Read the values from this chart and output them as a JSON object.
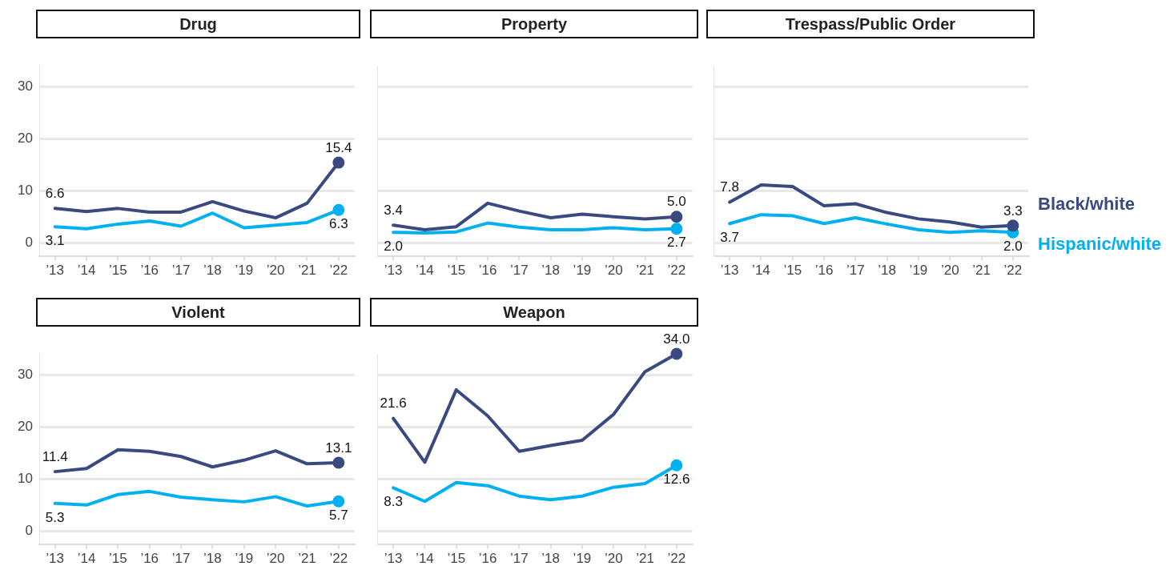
{
  "chart_data": [
    {
      "type": "line",
      "title": "Drug",
      "categories": [
        "’13",
        "’14",
        "’15",
        "’16",
        "’17",
        "’18",
        "’19",
        "’20",
        "’21",
        "’22"
      ],
      "ylim": [
        -2.5,
        34
      ],
      "yticks": [
        0,
        10,
        20,
        30
      ],
      "grid": "y",
      "series": [
        {
          "color": "#3a4a80",
          "values": [
            6.6,
            6.0,
            6.6,
            5.9,
            5.9,
            7.9,
            6.1,
            4.8,
            7.6,
            15.4
          ],
          "value_labels": [
            "6.6",
            null,
            null,
            null,
            null,
            null,
            null,
            null,
            null,
            "15.4"
          ]
        },
        {
          "color": "#00b0f0",
          "values": [
            3.1,
            2.7,
            3.6,
            4.2,
            3.2,
            5.7,
            2.9,
            3.4,
            3.9,
            6.3
          ],
          "value_labels": [
            "3.1",
            null,
            null,
            null,
            null,
            null,
            null,
            null,
            null,
            "6.3"
          ]
        }
      ]
    },
    {
      "type": "line",
      "title": "Property",
      "categories": [
        "’13",
        "’14",
        "’15",
        "’16",
        "’17",
        "’18",
        "’19",
        "’20",
        "’21",
        "’22"
      ],
      "ylim": [
        -2.5,
        34
      ],
      "yticks": [
        0,
        10,
        20,
        30
      ],
      "grid": "y",
      "tick_labels": "x",
      "series": [
        {
          "color": "#3a4a80",
          "values": [
            3.4,
            2.5,
            3.1,
            7.6,
            6.1,
            4.8,
            5.5,
            5.0,
            4.6,
            5.0
          ],
          "value_labels": [
            "3.4",
            null,
            null,
            null,
            null,
            null,
            null,
            null,
            null,
            "5.0"
          ]
        },
        {
          "color": "#00b0f0",
          "values": [
            2.0,
            1.9,
            2.1,
            3.8,
            3.0,
            2.5,
            2.5,
            2.9,
            2.5,
            2.7
          ],
          "value_labels": [
            "2.0",
            null,
            null,
            null,
            null,
            null,
            null,
            null,
            null,
            "2.7"
          ]
        }
      ]
    },
    {
      "type": "line",
      "title": "Trespass/Public Order",
      "categories": [
        "’13",
        "’14",
        "’15",
        "’16",
        "’17",
        "’18",
        "’19",
        "’20",
        "’21",
        "’22"
      ],
      "ylim": [
        -2.5,
        34
      ],
      "yticks": [
        0,
        10,
        20,
        30
      ],
      "grid": "y",
      "tick_labels": "x",
      "legend": "right",
      "series": [
        {
          "name": "Black/white",
          "color": "#3a4a80",
          "values": [
            7.8,
            11.1,
            10.8,
            7.1,
            7.5,
            5.8,
            4.6,
            4.0,
            3.0,
            3.3
          ],
          "value_labels": [
            "7.8",
            null,
            null,
            null,
            null,
            null,
            null,
            null,
            null,
            "3.3"
          ]
        },
        {
          "name": "Hispanic/white",
          "color": "#00b0f0",
          "values": [
            3.7,
            5.4,
            5.2,
            3.7,
            4.8,
            3.6,
            2.5,
            2.0,
            2.3,
            2.0
          ],
          "value_labels": [
            "3.7",
            null,
            null,
            null,
            null,
            null,
            null,
            null,
            null,
            "2.0"
          ]
        }
      ]
    },
    {
      "type": "line",
      "title": "Violent",
      "categories": [
        "’13",
        "’14",
        "’15",
        "’16",
        "’17",
        "’18",
        "’19",
        "’20",
        "’21",
        "’22"
      ],
      "ylim": [
        -2.5,
        34
      ],
      "yticks": [
        0,
        10,
        20,
        30
      ],
      "grid": "y",
      "series": [
        {
          "color": "#3a4a80",
          "values": [
            11.4,
            12.0,
            15.6,
            15.3,
            14.3,
            12.3,
            13.6,
            15.4,
            12.9,
            13.1
          ],
          "value_labels": [
            "11.4",
            null,
            null,
            null,
            null,
            null,
            null,
            null,
            null,
            "13.1"
          ]
        },
        {
          "color": "#00b0f0",
          "values": [
            5.3,
            5.0,
            7.0,
            7.6,
            6.5,
            6.0,
            5.6,
            6.6,
            4.8,
            5.7
          ],
          "value_labels": [
            "5.3",
            null,
            null,
            null,
            null,
            null,
            null,
            null,
            null,
            "5.7"
          ]
        }
      ]
    },
    {
      "type": "line",
      "title": "Weapon",
      "categories": [
        "’13",
        "’14",
        "’15",
        "’16",
        "’17",
        "’18",
        "’19",
        "’20",
        "’21",
        "’22"
      ],
      "ylim": [
        -2.5,
        34
      ],
      "yticks": [
        0,
        10,
        20,
        30
      ],
      "grid": "y",
      "tick_labels": "x",
      "series": [
        {
          "color": "#3a4a80",
          "values": [
            21.6,
            13.2,
            27.1,
            22.1,
            15.3,
            16.4,
            17.4,
            22.4,
            30.6,
            34.0
          ],
          "value_labels": [
            "21.6",
            null,
            null,
            null,
            null,
            null,
            null,
            null,
            null,
            "34.0"
          ]
        },
        {
          "color": "#00b0f0",
          "values": [
            8.3,
            5.7,
            9.3,
            8.7,
            6.7,
            6.0,
            6.7,
            8.4,
            9.1,
            12.6
          ],
          "value_labels": [
            "8.3",
            null,
            null,
            null,
            null,
            null,
            null,
            null,
            null,
            "12.6"
          ]
        }
      ]
    }
  ]
}
